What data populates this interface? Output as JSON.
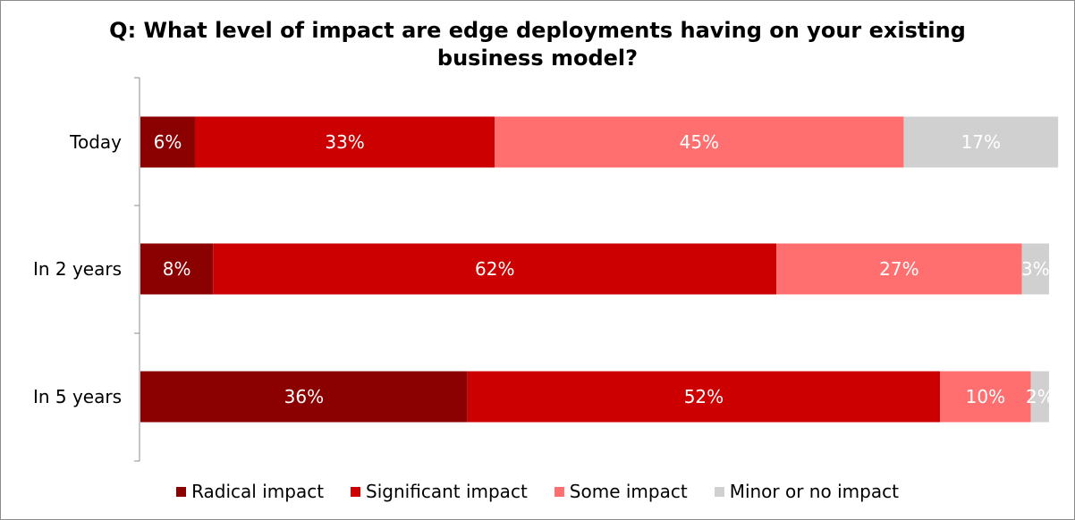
{
  "chart_data": {
    "type": "bar",
    "orientation": "horizontal",
    "stacked": true,
    "title": "Q: What level of impact are edge deployments having on your existing business model?",
    "categories": [
      "Today",
      "In 2 years",
      "In 5 years"
    ],
    "series": [
      {
        "name": "Radical impact",
        "color": "#8B0000",
        "values": [
          6,
          8,
          36
        ],
        "labels": [
          "6%",
          "8%",
          "36%"
        ]
      },
      {
        "name": "Significant impact",
        "color": "#CC0000",
        "values": [
          33,
          62,
          52
        ],
        "labels": [
          "33%",
          "62%",
          "52%"
        ]
      },
      {
        "name": "Some impact",
        "color": "#FF6F6F",
        "values": [
          45,
          27,
          10
        ],
        "labels": [
          "45%",
          "27%",
          "10%"
        ]
      },
      {
        "name": "Minor or no impact",
        "color": "#D0D0D0",
        "values": [
          17,
          3,
          2
        ],
        "labels": [
          "17%",
          "3%",
          "2%"
        ]
      }
    ],
    "xlim": [
      0,
      100
    ],
    "grid": false,
    "legend_position": "bottom"
  }
}
